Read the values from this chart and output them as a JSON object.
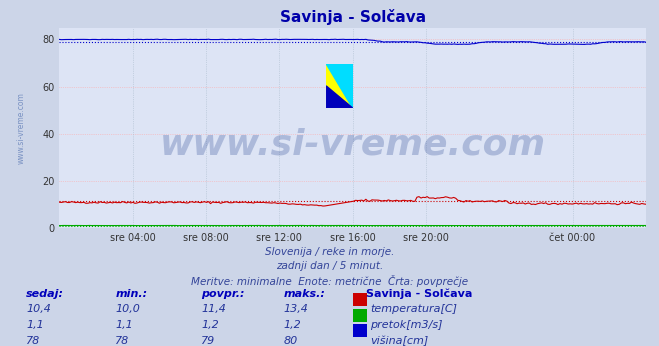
{
  "title": "Savinja - Solčava",
  "bg_color": "#ccd5e8",
  "plot_bg_color": "#dde4f5",
  "grid_color_h": "#ffaaaa",
  "grid_color_v": "#aabbcc",
  "ylim": [
    0,
    85
  ],
  "yticks": [
    0,
    20,
    40,
    60,
    80
  ],
  "xlabel_ticks": [
    "sre 04:00",
    "sre 08:00",
    "sre 12:00",
    "sre 16:00",
    "sre 20:00",
    "čet 00:00"
  ],
  "xlabel_fracs": [
    0.125,
    0.25,
    0.375,
    0.5,
    0.625,
    0.875
  ],
  "n_points": 288,
  "temp_color": "#cc0000",
  "temp_avg": 11.4,
  "pretok_color": "#00aa00",
  "pretok_avg": 1.2,
  "visina_color": "#0000cc",
  "visina_avg": 79.0,
  "watermark": "www.si-vreme.com",
  "watermark_color": "#1a3a8a",
  "watermark_alpha": 0.25,
  "watermark_fontsize": 26,
  "sidebar_text": "www.si-vreme.com",
  "sidebar_color": "#4466aa",
  "sidebar_alpha": 0.6,
  "footer_lines": [
    "Slovenija / reke in morje.",
    "zadnji dan / 5 minut.",
    "Meritve: minimalne  Enote: metrične  Črta: povprečje"
  ],
  "footer_color": "#334499",
  "table_header_color": "#0000bb",
  "table_headers": [
    "sedaj:",
    "min.:",
    "povpr.:",
    "maks.:"
  ],
  "legend_title": "Savinja - Solčava",
  "legend_items": [
    {
      "label": "temperatura[C]",
      "color": "#cc0000",
      "sedaj": "10,4",
      "min": "10,0",
      "povpr": "11,4",
      "maks": "13,4"
    },
    {
      "label": "pretok[m3/s]",
      "color": "#00aa00",
      "sedaj": "1,1",
      "min": "1,1",
      "povpr": "1,2",
      "maks": "1,2"
    },
    {
      "label": "višina[cm]",
      "color": "#0000cc",
      "sedaj": "78",
      "min": "78",
      "povpr": "79",
      "maks": "80"
    }
  ],
  "title_color": "#0000aa",
  "title_fontsize": 11,
  "tick_fontsize": 7,
  "footer_fontsize": 7.5,
  "table_fontsize": 8
}
